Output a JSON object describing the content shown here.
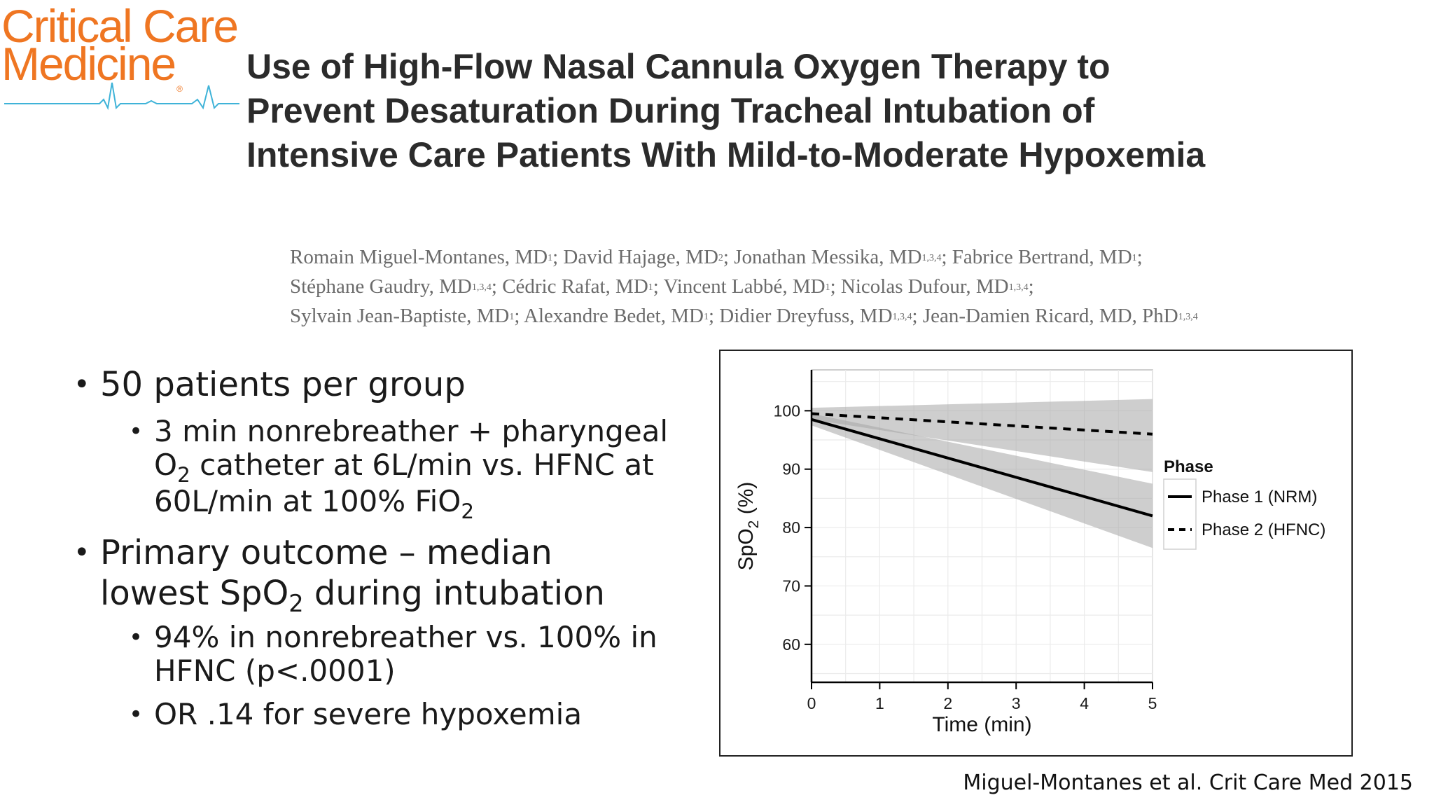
{
  "logo": {
    "line1": "Critical Care",
    "line2": "Medicine",
    "reg_mark": "®",
    "color": "#ef7622",
    "ecg_color": "#3fb3d8"
  },
  "title": "Use of High-Flow Nasal Cannula Oxygen Therapy to Prevent Desaturation During Tracheal Intubation of Intensive Care Patients With Mild-to-Moderate Hypoxemia",
  "authors": [
    {
      "name": "Romain Miguel-Montanes, MD",
      "sup": "1",
      "sep": ";"
    },
    {
      "name": "David Hajage, MD",
      "sup": "2",
      "sep": ";"
    },
    {
      "name": "Jonathan Messika, MD",
      "sup": "1,3,4",
      "sep": ";"
    },
    {
      "name": "Fabrice Bertrand, MD",
      "sup": "1",
      "sep": ";"
    },
    {
      "name": "Stéphane Gaudry, MD",
      "sup": "1,3,4",
      "sep": ";"
    },
    {
      "name": "Cédric Rafat, MD",
      "sup": "1",
      "sep": ";"
    },
    {
      "name": "Vincent Labbé, MD",
      "sup": "1",
      "sep": ";"
    },
    {
      "name": "Nicolas Dufour, MD",
      "sup": "1,3,4",
      "sep": ";"
    },
    {
      "name": "Sylvain Jean-Baptiste, MD",
      "sup": "1",
      "sep": ";"
    },
    {
      "name": "Alexandre Bedet, MD",
      "sup": "1",
      "sep": ";"
    },
    {
      "name": "Didier Dreyfuss, MD",
      "sup": "1,3,4",
      "sep": ";"
    },
    {
      "name": "Jean-Damien Ricard, MD, PhD",
      "sup": "1,3,4",
      "sep": ""
    }
  ],
  "bullets": {
    "b1": "50 patients per group",
    "b1a_l1": "3 min nonrebreather + pharyngeal",
    "b1a_l2a": "O",
    "b1a_l2sub": "2",
    "b1a_l2b": " catheter at 6L/min vs. HFNC at",
    "b1a_l3a": "60L/min at 100% FiO",
    "b1a_l3sub": "2",
    "b2_l1": "Primary outcome – median",
    "b2_l2a": "lowest SpO",
    "b2_l2sub": "2",
    "b2_l2b": " during intubation",
    "b2a_l1": "94% in nonrebreather vs. 100% in",
    "b2a_l2": "HFNC (p<.0001)",
    "b2b": "OR .14 for severe hypoxemia",
    "marker": "•"
  },
  "citation": "Miguel-Montanes et al. Crit Care Med 2015",
  "chart_data": {
    "type": "line",
    "xlabel": "Time (min)",
    "ylabel_main": "SpO",
    "ylabel_sub": "2",
    "ylabel_unit": " (%)",
    "xlim": [
      0,
      5
    ],
    "ylim": [
      53.5,
      107
    ],
    "xticks": [
      0,
      1,
      2,
      3,
      4,
      5
    ],
    "yticks": [
      60,
      70,
      80,
      90,
      100
    ],
    "grid": true,
    "legend_title": "Phase",
    "legend_position": "right",
    "series": [
      {
        "name": "Phase 1 (NRM)",
        "style": "solid",
        "x": [
          0,
          5
        ],
        "y": [
          98.5,
          82
        ],
        "ci_low": [
          97.5,
          76.5
        ],
        "ci_high": [
          99.5,
          87.5
        ]
      },
      {
        "name": "Phase 2 (HFNC)",
        "style": "dashed",
        "x": [
          0,
          5
        ],
        "y": [
          99.5,
          96
        ],
        "ci_low": [
          98.5,
          89.5
        ],
        "ci_high": [
          100.5,
          102
        ]
      }
    ]
  }
}
